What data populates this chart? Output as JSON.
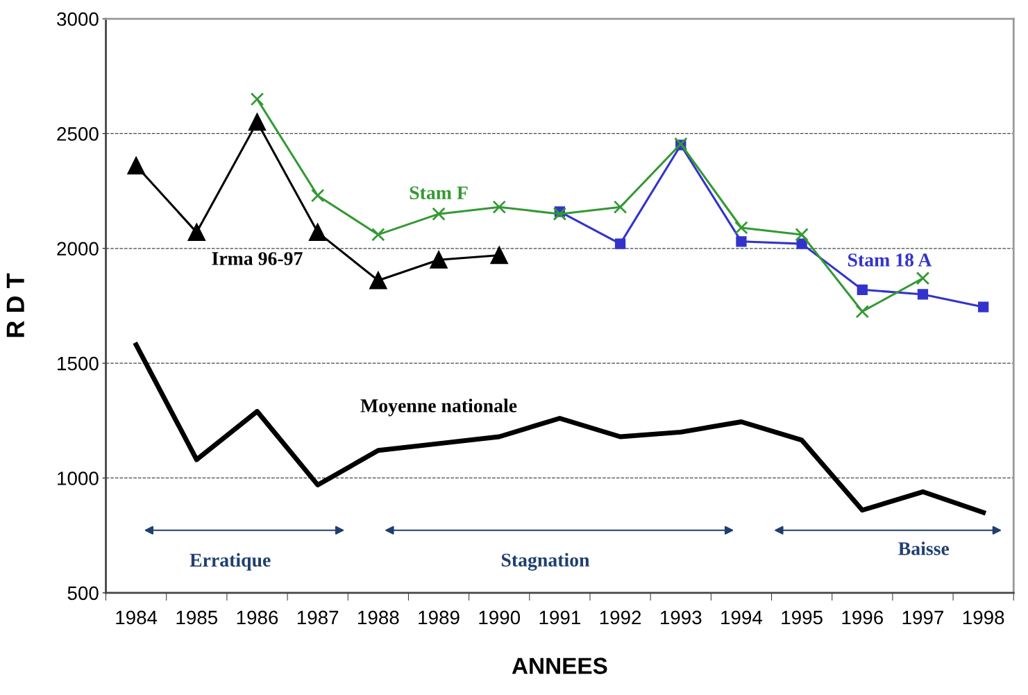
{
  "chart_data": {
    "type": "line",
    "xlabel": "ANNEES",
    "ylabel": "R D T",
    "categories": [
      "1984",
      "1985",
      "1986",
      "1987",
      "1988",
      "1989",
      "1990",
      "1991",
      "1992",
      "1993",
      "1994",
      "1995",
      "1996",
      "1997",
      "1998"
    ],
    "ylim": [
      500,
      3000
    ],
    "yticks": [
      500,
      1000,
      1500,
      2000,
      2500,
      3000
    ],
    "grid": "y",
    "legend": false,
    "series": [
      {
        "name": "Irma 96-97",
        "color": "#000000",
        "marker": "triangle",
        "values": [
          2360,
          2070,
          2550,
          2070,
          1860,
          1950,
          1970,
          null,
          null,
          null,
          null,
          null,
          null,
          null,
          null
        ]
      },
      {
        "name": "Stam F",
        "color": "#339933",
        "marker": "cross",
        "values": [
          null,
          null,
          2650,
          2230,
          2060,
          2150,
          2180,
          2150,
          2180,
          2455,
          2090,
          2060,
          1725,
          1870,
          null
        ]
      },
      {
        "name": "Stam 18 A",
        "color": "#3333cc",
        "marker": "square",
        "values": [
          null,
          null,
          null,
          null,
          null,
          null,
          null,
          2160,
          2020,
          2450,
          2030,
          2020,
          1820,
          1800,
          1745
        ]
      },
      {
        "name": "Moyenne nationale",
        "color": "#000000",
        "marker": "none",
        "values": [
          1580,
          1080,
          1290,
          970,
          1120,
          1150,
          1180,
          1260,
          1180,
          1200,
          1245,
          1165,
          860,
          940,
          850
        ]
      }
    ],
    "annotations": [
      "Erratique",
      "Stagnation",
      "Baisse"
    ]
  }
}
